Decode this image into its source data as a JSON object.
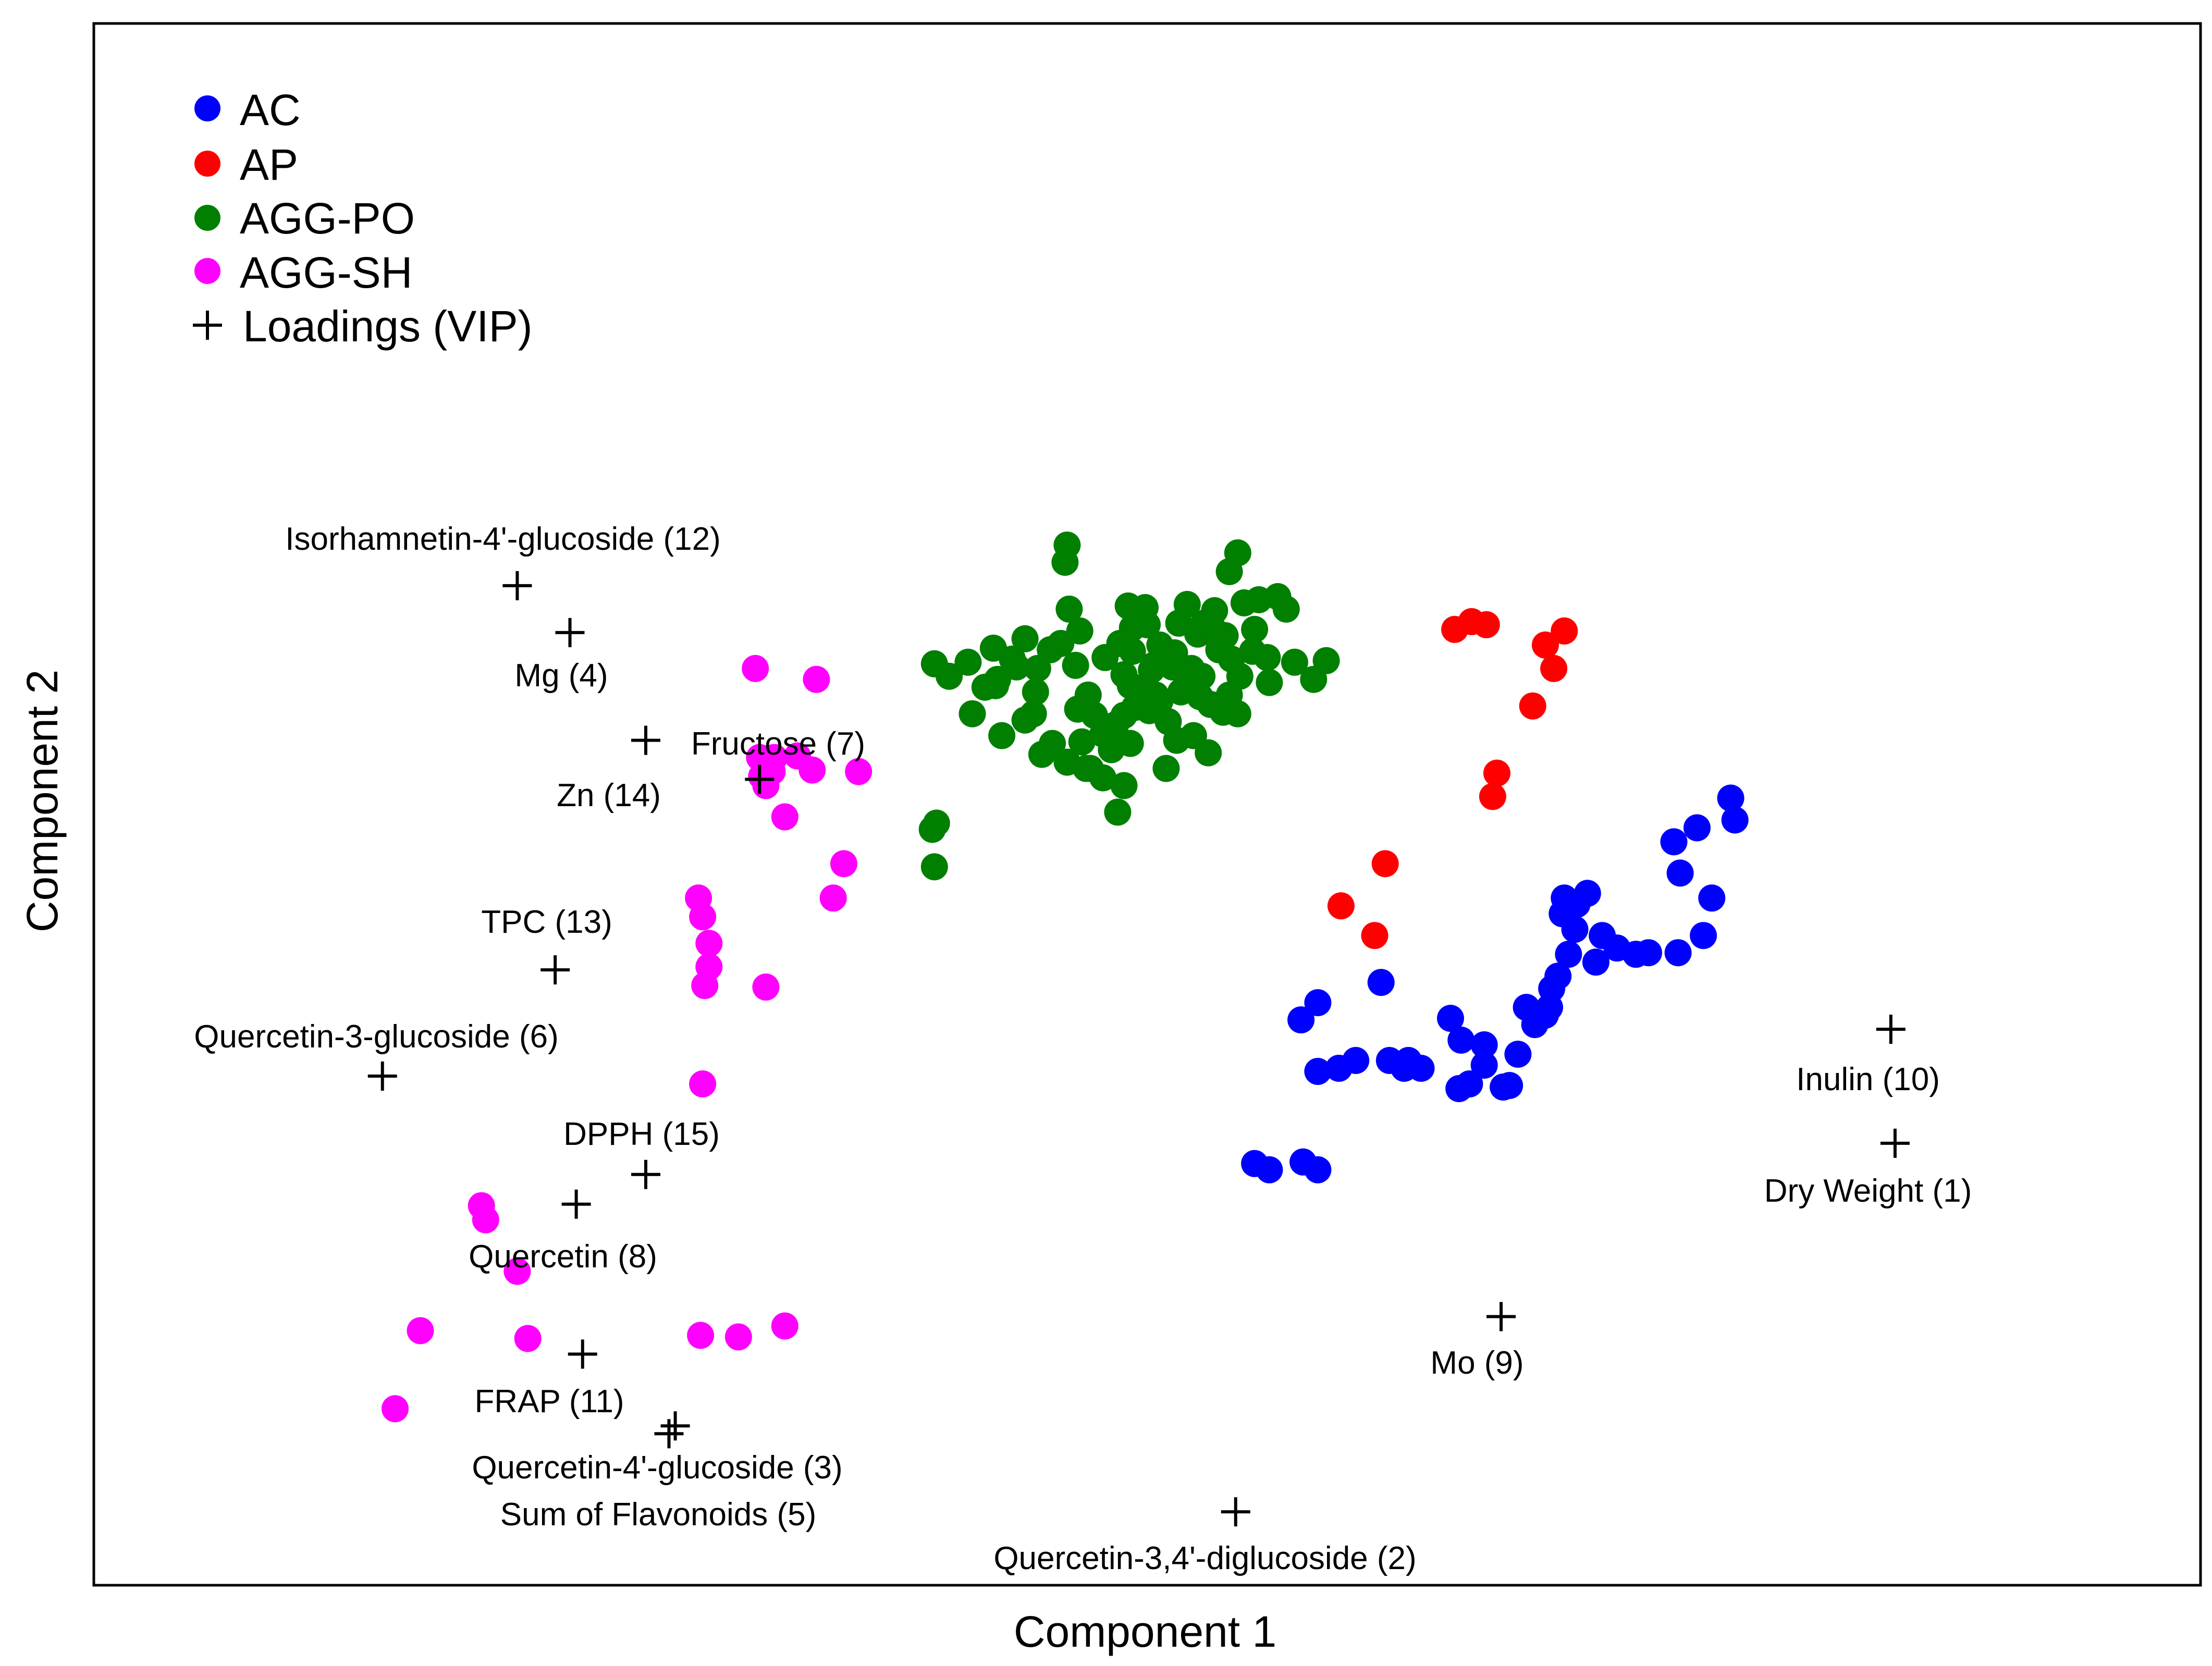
{
  "chart_data": {
    "type": "scatter",
    "title": "",
    "xlabel": "Component 1",
    "ylabel": "Component 2",
    "xlim": [
      0,
      100
    ],
    "ylim": [
      0,
      100
    ],
    "grid": false,
    "legend_position": "top-left",
    "legend": [
      {
        "name": "AC",
        "color": "#0000ff",
        "marker": "circle"
      },
      {
        "name": "AP",
        "color": "#ff0000",
        "marker": "circle"
      },
      {
        "name": "AGG-PO",
        "color": "#007f00",
        "marker": "circle"
      },
      {
        "name": "AGG-SH",
        "color": "#ff00ff",
        "marker": "circle"
      },
      {
        "name": "Loadings (VIP)",
        "color": "#000000",
        "marker": "plus"
      }
    ],
    "series": [
      {
        "name": "AC",
        "color": "#0000ff",
        "points": [
          [
            55.1,
            27.0
          ],
          [
            55.8,
            26.6
          ],
          [
            57.4,
            27.1
          ],
          [
            58.1,
            26.6
          ],
          [
            58.1,
            37.3
          ],
          [
            57.3,
            36.2
          ],
          [
            58.1,
            32.9
          ],
          [
            59.1,
            33.1
          ],
          [
            61.1,
            38.6
          ],
          [
            59.9,
            33.6
          ],
          [
            61.5,
            33.6
          ],
          [
            62.4,
            33.6
          ],
          [
            62.2,
            33.1
          ],
          [
            63.0,
            33.1
          ],
          [
            64.4,
            36.3
          ],
          [
            64.9,
            34.9
          ],
          [
            64.8,
            31.8
          ],
          [
            65.3,
            32.1
          ],
          [
            66.0,
            34.6
          ],
          [
            66.0,
            33.3
          ],
          [
            66.9,
            31.9
          ],
          [
            67.2,
            32.0
          ],
          [
            67.6,
            34.0
          ],
          [
            68.0,
            37.0
          ],
          [
            68.4,
            35.9
          ],
          [
            68.9,
            36.5
          ],
          [
            69.1,
            37.0
          ],
          [
            69.2,
            38.2
          ],
          [
            69.5,
            39.0
          ],
          [
            70.0,
            40.4
          ],
          [
            69.7,
            43.0
          ],
          [
            69.8,
            44.0
          ],
          [
            70.4,
            43.6
          ],
          [
            70.3,
            42.0
          ],
          [
            70.9,
            44.3
          ],
          [
            71.6,
            41.6
          ],
          [
            71.3,
            39.9
          ],
          [
            72.3,
            40.8
          ],
          [
            73.2,
            40.4
          ],
          [
            73.8,
            40.5
          ],
          [
            75.2,
            40.5
          ],
          [
            76.4,
            41.6
          ],
          [
            76.8,
            44.0
          ],
          [
            75.3,
            45.6
          ],
          [
            75.0,
            47.6
          ],
          [
            76.1,
            48.5
          ],
          [
            77.7,
            50.4
          ],
          [
            77.9,
            49.0
          ]
        ]
      },
      {
        "name": "AP",
        "color": "#ff0000",
        "points": [
          [
            59.2,
            43.5
          ],
          [
            60.8,
            41.6
          ],
          [
            61.3,
            46.2
          ],
          [
            64.6,
            61.2
          ],
          [
            65.4,
            61.7
          ],
          [
            66.1,
            61.5
          ],
          [
            68.3,
            56.3
          ],
          [
            69.3,
            58.7
          ],
          [
            66.4,
            50.5
          ],
          [
            68.9,
            60.2
          ],
          [
            69.8,
            61.1
          ],
          [
            66.6,
            52.0
          ]
        ]
      },
      {
        "name": "AGG-PO",
        "color": "#007f00",
        "points": [
          [
            39.8,
            48.4
          ],
          [
            39.9,
            46.0
          ],
          [
            40.0,
            48.8
          ],
          [
            39.9,
            59.0
          ],
          [
            40.6,
            58.2
          ],
          [
            41.7,
            55.8
          ],
          [
            42.3,
            57.5
          ],
          [
            42.8,
            57.6
          ],
          [
            43.8,
            58.8
          ],
          [
            44.2,
            55.4
          ],
          [
            44.7,
            57.2
          ],
          [
            44.8,
            58.7
          ],
          [
            45.4,
            59.9
          ],
          [
            45.9,
            60.3
          ],
          [
            46.3,
            62.5
          ],
          [
            46.6,
            58.9
          ],
          [
            46.7,
            56.1
          ],
          [
            47.2,
            57.0
          ],
          [
            47.5,
            55.7
          ],
          [
            48.3,
            53.5
          ],
          [
            48.9,
            55.7
          ],
          [
            49.2,
            57.6
          ],
          [
            49.6,
            57.4
          ],
          [
            46.1,
            65.5
          ],
          [
            46.2,
            66.6
          ],
          [
            46.8,
            61.1
          ],
          [
            46.9,
            54.0
          ],
          [
            47.3,
            52.3
          ],
          [
            46.2,
            52.7
          ],
          [
            47.9,
            54.5
          ],
          [
            48.5,
            55.1
          ],
          [
            49.3,
            59.8
          ],
          [
            50.0,
            61.5
          ],
          [
            50.2,
            58.6
          ],
          [
            50.6,
            60.2
          ],
          [
            50.1,
            56.0
          ],
          [
            51.0,
            55.3
          ],
          [
            51.3,
            59.7
          ],
          [
            52.1,
            58.7
          ],
          [
            52.4,
            60.9
          ],
          [
            53.0,
            56.4
          ],
          [
            53.6,
            55.9
          ],
          [
            53.7,
            60.8
          ],
          [
            53.9,
            64.9
          ],
          [
            54.3,
            66.1
          ],
          [
            54.6,
            62.9
          ],
          [
            55.1,
            61.2
          ],
          [
            55.3,
            63.1
          ],
          [
            56.2,
            63.3
          ],
          [
            56.6,
            62.5
          ],
          [
            57.0,
            59.1
          ],
          [
            57.9,
            58.0
          ],
          [
            58.5,
            59.2
          ],
          [
            55.7,
            59.4
          ],
          [
            55.8,
            57.8
          ],
          [
            54.4,
            58.2
          ],
          [
            53.9,
            57.0
          ],
          [
            54.3,
            55.8
          ],
          [
            52.2,
            54.4
          ],
          [
            52.9,
            53.3
          ],
          [
            51.4,
            54.1
          ],
          [
            50.9,
            52.3
          ],
          [
            49.2,
            53.9
          ],
          [
            48.9,
            51.2
          ],
          [
            48.6,
            49.5
          ],
          [
            47.9,
            51.7
          ],
          [
            47.1,
            52.3
          ],
          [
            45.5,
            53.9
          ],
          [
            44.6,
            55.8
          ],
          [
            43.6,
            59.3
          ],
          [
            42.9,
            58.0
          ],
          [
            44.2,
            60.6
          ],
          [
            42.7,
            60.0
          ],
          [
            43.1,
            54.4
          ],
          [
            41.5,
            59.1
          ],
          [
            45.0,
            53.2
          ],
          [
            50.4,
            57.0
          ],
          [
            51.6,
            57.2
          ],
          [
            52.6,
            58.2
          ],
          [
            53.1,
            61.3
          ],
          [
            54.0,
            59.3
          ],
          [
            55.0,
            59.8
          ],
          [
            49.3,
            61.3
          ],
          [
            48.7,
            60.3
          ],
          [
            50.9,
            59.2
          ],
          [
            51.9,
            62.8
          ],
          [
            52.7,
            61.6
          ],
          [
            53.4,
            59.9
          ],
          [
            48.0,
            59.4
          ],
          [
            48.9,
            58.3
          ],
          [
            50.3,
            58.9
          ],
          [
            51.2,
            58.8
          ],
          [
            52.1,
            58.4
          ],
          [
            53.2,
            62.4
          ],
          [
            49.9,
            62.6
          ],
          [
            51.5,
            61.6
          ],
          [
            50.6,
            56.6
          ],
          [
            52.5,
            56.9
          ],
          [
            49.4,
            56.2
          ],
          [
            49.1,
            62.7
          ]
        ]
      },
      {
        "name": "AGG-SH",
        "color": "#ff00ff",
        "points": [
          [
            34.3,
            58.0
          ],
          [
            31.4,
            58.7
          ],
          [
            31.6,
            53.0
          ],
          [
            31.7,
            51.8
          ],
          [
            31.9,
            51.2
          ],
          [
            32.2,
            52.1
          ],
          [
            32.3,
            53.0
          ],
          [
            33.4,
            53.1
          ],
          [
            34.1,
            52.2
          ],
          [
            36.3,
            52.1
          ],
          [
            32.8,
            49.2
          ],
          [
            35.6,
            46.2
          ],
          [
            35.1,
            44.0
          ],
          [
            28.7,
            44.0
          ],
          [
            28.9,
            42.8
          ],
          [
            29.2,
            41.1
          ],
          [
            29.2,
            39.6
          ],
          [
            29.0,
            38.4
          ],
          [
            31.9,
            38.3
          ],
          [
            28.9,
            32.1
          ],
          [
            18.4,
            24.3
          ],
          [
            18.6,
            23.4
          ],
          [
            20.1,
            20.1
          ],
          [
            20.6,
            15.8
          ],
          [
            15.5,
            16.3
          ],
          [
            28.8,
            16.0
          ],
          [
            30.6,
            15.9
          ],
          [
            32.8,
            16.6
          ],
          [
            14.3,
            11.3
          ]
        ]
      }
    ],
    "loadings": [
      {
        "label": "Dry Weight (1)",
        "x": 85.5,
        "y": 28.3
      },
      {
        "label": "Quercetin-3,4'-diglucoside (2)",
        "x": 54.2,
        "y": 4.7
      },
      {
        "label": "Quercetin-4'-glucoside (3)",
        "x": 27.6,
        "y": 10.2
      },
      {
        "label": "Mg (4)",
        "x": 22.6,
        "y": 61.0
      },
      {
        "label": "Sum of Flavonoids (5)",
        "x": 27.3,
        "y": 9.7
      },
      {
        "label": "Quercetin-3-glucoside (6)",
        "x": 13.7,
        "y": 32.6
      },
      {
        "label": "Fructose (7)",
        "x": 31.6,
        "y": 51.6
      },
      {
        "label": "Quercetin (8)",
        "x": 22.9,
        "y": 24.4
      },
      {
        "label": "Mo (9)",
        "x": 66.8,
        "y": 17.2
      },
      {
        "label": "Inulin (10)",
        "x": 85.3,
        "y": 35.6
      },
      {
        "label": "FRAP (11)",
        "x": 23.2,
        "y": 14.8
      },
      {
        "label": "Isorhamnetin-4'-glucoside (12)",
        "x": 20.1,
        "y": 64.0
      },
      {
        "label": "TPC (13)",
        "x": 21.9,
        "y": 39.4
      },
      {
        "label": "Zn (14)",
        "x": 26.2,
        "y": 54.1
      },
      {
        "label": "DPPH (15)",
        "x": 26.2,
        "y": 26.3
      }
    ]
  }
}
